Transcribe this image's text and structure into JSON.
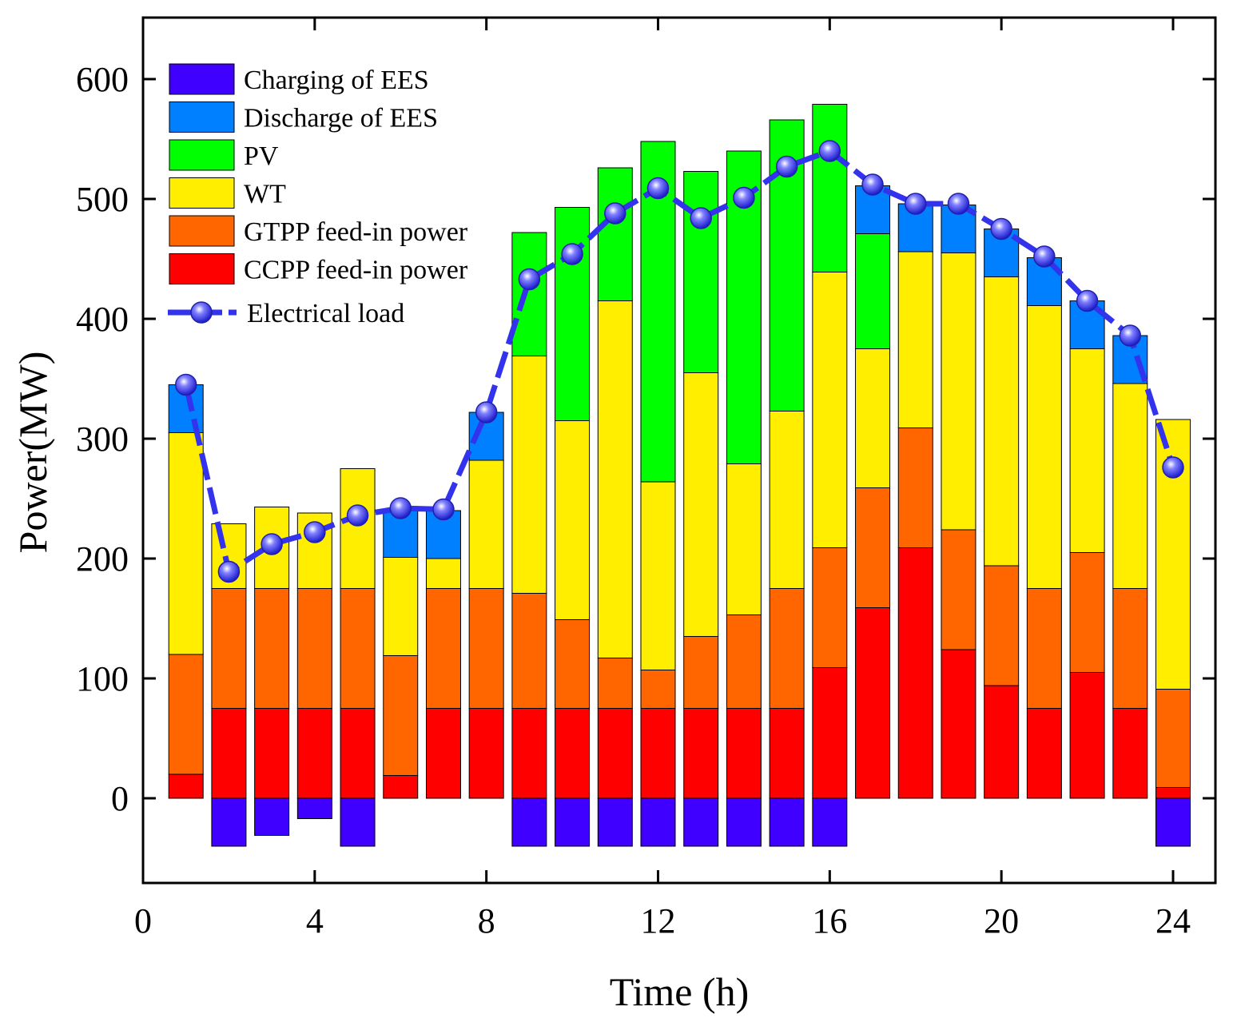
{
  "chart_data": {
    "type": "bar",
    "stacked": true,
    "title": "",
    "xlabel": "Time (h)",
    "ylabel": "Power(MW)",
    "xlim": [
      0,
      25
    ],
    "ylim": [
      -70,
      650
    ],
    "xticks": [
      0,
      4,
      8,
      12,
      16,
      20,
      24
    ],
    "yticks": [
      0,
      100,
      200,
      300,
      400,
      500,
      600
    ],
    "legend_position": "top-left",
    "x": [
      1,
      2,
      3,
      4,
      5,
      6,
      7,
      8,
      9,
      10,
      11,
      12,
      13,
      14,
      15,
      16,
      17,
      18,
      19,
      20,
      21,
      22,
      23,
      24
    ],
    "series": [
      {
        "name": "Charging of EES",
        "color": "#4000ff",
        "values": [
          0,
          -40,
          -31,
          -17,
          -40,
          0,
          0,
          0,
          -40,
          -40,
          -40,
          -40,
          -40,
          -40,
          -40,
          -40,
          0,
          0,
          0,
          0,
          0,
          0,
          0,
          -40
        ]
      },
      {
        "name": "CCPP feed-in power",
        "color": "#ff0000",
        "values": [
          20,
          75,
          75,
          75,
          75,
          19,
          75,
          75,
          75,
          75,
          75,
          75,
          75,
          75,
          75,
          109,
          159,
          209,
          124,
          94,
          75,
          105,
          75,
          9
        ]
      },
      {
        "name": "GTPP feed-in power",
        "color": "#ff6600",
        "values": [
          100,
          100,
          100,
          100,
          100,
          100,
          100,
          100,
          96,
          74,
          42,
          32,
          60,
          78,
          100,
          100,
          100,
          100,
          100,
          100,
          100,
          100,
          100,
          82
        ]
      },
      {
        "name": "WT",
        "color": "#ffee00",
        "values": [
          185,
          54,
          68,
          63,
          100,
          82,
          25,
          107,
          198,
          166,
          298,
          157,
          220,
          126,
          148,
          230,
          116,
          147,
          231,
          241,
          236,
          170,
          171,
          225
        ]
      },
      {
        "name": "PV",
        "color": "#00ff00",
        "values": [
          0,
          0,
          0,
          0,
          0,
          0,
          0,
          0,
          103,
          178,
          111,
          284,
          168,
          261,
          243,
          140,
          96,
          0,
          0,
          0,
          0,
          0,
          0,
          0
        ]
      },
      {
        "name": "Discharge of EES",
        "color": "#0080ff",
        "values": [
          40,
          0,
          0,
          0,
          0,
          40,
          40,
          40,
          0,
          0,
          0,
          0,
          0,
          0,
          0,
          0,
          40,
          40,
          40,
          40,
          40,
          40,
          40,
          0
        ]
      }
    ],
    "line": {
      "name": "Electrical load",
      "color": "#3333ee",
      "values": [
        345,
        189,
        212,
        222,
        236,
        242,
        241,
        322,
        433,
        454,
        488,
        509,
        484,
        501,
        527,
        540,
        512,
        496,
        496,
        475,
        452,
        415,
        386,
        276
      ]
    },
    "legend_order": [
      "Charging of EES",
      "Discharge of EES",
      "PV",
      "WT",
      "GTPP feed-in power",
      "CCPP feed-in power",
      "Electrical load"
    ]
  }
}
